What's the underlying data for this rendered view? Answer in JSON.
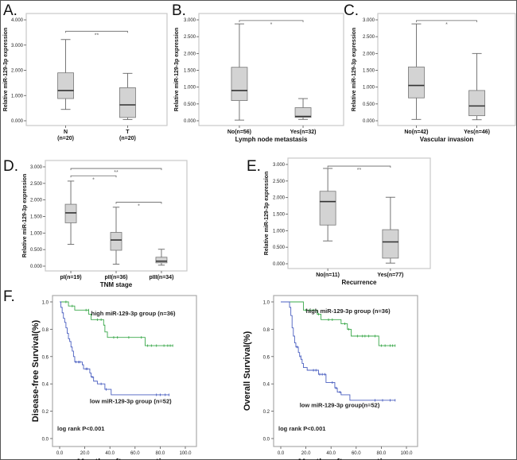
{
  "chart_data": [
    {
      "panel": "A.",
      "type": "box",
      "ylabel": "Relative miR-129-3p expression",
      "xlabel": "",
      "ylim": [
        0,
        4
      ],
      "yticks": [
        "0.000",
        "1.000",
        "2.000",
        "3.000",
        "4.000"
      ],
      "ytick_values": [
        0,
        1,
        2,
        3,
        4
      ],
      "categories": [
        {
          "name": "N",
          "sub": "(n=20)"
        },
        {
          "name": "T",
          "sub": "(n=20)"
        }
      ],
      "boxes": [
        {
          "min": 0.45,
          "q1": 0.88,
          "median": 1.2,
          "q3": 1.9,
          "max": 3.22
        },
        {
          "min": 0.05,
          "q1": 0.13,
          "median": 0.63,
          "q3": 1.31,
          "max": 1.88
        }
      ],
      "significance": [
        {
          "from": 0,
          "to": 1,
          "y": 3.55,
          "label": "**"
        }
      ]
    },
    {
      "panel": "B.",
      "type": "box",
      "ylabel": "Relative miR-129-3p expression",
      "xlabel": "Lymph node metastasis",
      "ylim": [
        0,
        3
      ],
      "yticks": [
        "0.000",
        "0.500",
        "1.000",
        "1.500",
        "2.000",
        "2.500",
        "3.000"
      ],
      "ytick_values": [
        0,
        0.5,
        1,
        1.5,
        2,
        2.5,
        3
      ],
      "categories": [
        {
          "name": "No(n=56)",
          "sub": ""
        },
        {
          "name": "Yes(n=32)",
          "sub": ""
        }
      ],
      "boxes": [
        {
          "min": 0.02,
          "q1": 0.6,
          "median": 0.9,
          "q3": 1.59,
          "max": 2.88
        },
        {
          "min": 0.04,
          "q1": 0.1,
          "median": 0.13,
          "q3": 0.39,
          "max": 0.66
        }
      ],
      "significance": [
        {
          "from": 0,
          "to": 1,
          "y": 2.98,
          "label": "*"
        }
      ]
    },
    {
      "panel": "C.",
      "type": "box",
      "ylabel": "Relative miR-129-3p expression",
      "xlabel": "Vascular invasion",
      "ylim": [
        0,
        3
      ],
      "yticks": [
        "0.000",
        "0.500",
        "1.000",
        "1.500",
        "2.000",
        "2.500",
        "3.000"
      ],
      "ytick_values": [
        0,
        0.5,
        1,
        1.5,
        2,
        2.5,
        3
      ],
      "categories": [
        {
          "name": "No(n=42)",
          "sub": ""
        },
        {
          "name": "Yes(n=46)",
          "sub": ""
        }
      ],
      "boxes": [
        {
          "min": 0.04,
          "q1": 0.68,
          "median": 1.05,
          "q3": 1.6,
          "max": 2.88
        },
        {
          "min": 0.03,
          "q1": 0.15,
          "median": 0.44,
          "q3": 0.9,
          "max": 2.0
        }
      ],
      "significance": [
        {
          "from": 0,
          "to": 1,
          "y": 2.98,
          "label": "*"
        }
      ]
    },
    {
      "panel": "D.",
      "type": "box",
      "ylabel": "Relative miR-129-3p expression",
      "xlabel": "TNM stage",
      "ylim": [
        0,
        3
      ],
      "yticks": [
        "0.000",
        "0.500",
        "1.000",
        "1.500",
        "2.000",
        "2.500",
        "3.000"
      ],
      "ytick_values": [
        0,
        0.5,
        1,
        1.5,
        2,
        2.5,
        3
      ],
      "categories": [
        {
          "name": "pI(n=19)",
          "sub": ""
        },
        {
          "name": "pII(n=36)",
          "sub": ""
        },
        {
          "name": "pIII(n=34)",
          "sub": ""
        }
      ],
      "boxes": [
        {
          "min": 0.66,
          "q1": 1.31,
          "median": 1.61,
          "q3": 1.87,
          "max": 2.57
        },
        {
          "min": 0.06,
          "q1": 0.48,
          "median": 0.79,
          "q3": 1.02,
          "max": 1.78
        },
        {
          "min": 0.03,
          "q1": 0.1,
          "median": 0.15,
          "q3": 0.27,
          "max": 0.51
        }
      ],
      "significance": [
        {
          "from": 0,
          "to": 2,
          "y": 2.95,
          "label": "**"
        },
        {
          "from": 0,
          "to": 1,
          "y": 2.73,
          "label": "*"
        },
        {
          "from": 1,
          "to": 2,
          "y": 1.93,
          "label": "*"
        }
      ]
    },
    {
      "panel": "E.",
      "type": "box",
      "ylabel": "Relative miR-129-3p expression",
      "xlabel": "Recurrence",
      "ylim": [
        0,
        3
      ],
      "yticks": [
        "0.000",
        "0.500",
        "1.000",
        "1.500",
        "2.000",
        "2.500",
        "3.000"
      ],
      "ytick_values": [
        0,
        0.5,
        1,
        1.5,
        2,
        2.5,
        3
      ],
      "categories": [
        {
          "name": "No(n=11)",
          "sub": ""
        },
        {
          "name": "Yes(n=77)",
          "sub": ""
        }
      ],
      "boxes": [
        {
          "min": 0.69,
          "q1": 1.17,
          "median": 1.88,
          "q3": 2.19,
          "max": 2.88
        },
        {
          "min": 0.02,
          "q1": 0.17,
          "median": 0.66,
          "q3": 1.03,
          "max": 2.01
        }
      ],
      "significance": [
        {
          "from": 0,
          "to": 1,
          "y": 2.95,
          "label": "**"
        }
      ]
    },
    {
      "panel": "F.",
      "type": "line",
      "subtype": "kaplan-meier",
      "ylabel": "Disease-free Survival(%)",
      "xlabel": "Months after operation",
      "xlim": [
        0,
        100
      ],
      "ylim": [
        0,
        1
      ],
      "xticks": [
        "0.0",
        "20.0",
        "40.0",
        "60.0",
        "80.0",
        "100.0"
      ],
      "xtick_values": [
        0,
        20,
        40,
        60,
        80,
        100
      ],
      "yticks": [
        "0.0",
        "0.2",
        "0.4",
        "0.6",
        "0.8",
        "1.0"
      ],
      "ytick_values": [
        0,
        0.2,
        0.4,
        0.6,
        0.8,
        1.0
      ],
      "annotation": "log rank P<0.001",
      "series": [
        {
          "name": "high miR-129-3p group (n=36)",
          "color": "#3aa84a",
          "steps": [
            [
              0,
              1.0
            ],
            [
              7,
              0.97
            ],
            [
              12,
              0.94
            ],
            [
              23,
              0.91
            ],
            [
              25,
              0.87
            ],
            [
              35,
              0.83
            ],
            [
              36,
              0.78
            ],
            [
              38,
              0.74
            ],
            [
              68,
              0.68
            ],
            [
              90,
              0.68
            ]
          ],
          "censored": [
            [
              5,
              1.0
            ],
            [
              10,
              0.97
            ],
            [
              21,
              0.94
            ],
            [
              23,
              0.94
            ],
            [
              30,
              0.87
            ],
            [
              33,
              0.87
            ],
            [
              43,
              0.74
            ],
            [
              46,
              0.74
            ],
            [
              55,
              0.74
            ],
            [
              65,
              0.74
            ],
            [
              70,
              0.68
            ],
            [
              73,
              0.68
            ],
            [
              77,
              0.68
            ],
            [
              83,
              0.68
            ],
            [
              86,
              0.68
            ],
            [
              88,
              0.68
            ],
            [
              90,
              0.68
            ]
          ]
        },
        {
          "name": "low miR-129-3p group (n=52)",
          "color": "#4a5fc0",
          "steps": [
            [
              0,
              1.0
            ],
            [
              1,
              0.96
            ],
            [
              2,
              0.92
            ],
            [
              3,
              0.88
            ],
            [
              4,
              0.85
            ],
            [
              5,
              0.81
            ],
            [
              6,
              0.77
            ],
            [
              7,
              0.73
            ],
            [
              8,
              0.71
            ],
            [
              9,
              0.67
            ],
            [
              10,
              0.64
            ],
            [
              11,
              0.6
            ],
            [
              12,
              0.56
            ],
            [
              18,
              0.54
            ],
            [
              19,
              0.51
            ],
            [
              24,
              0.48
            ],
            [
              25,
              0.45
            ],
            [
              27,
              0.42
            ],
            [
              30,
              0.4
            ],
            [
              36,
              0.36
            ],
            [
              41,
              0.32
            ],
            [
              87,
              0.32
            ]
          ],
          "censored": [
            [
              13,
              0.56
            ],
            [
              15,
              0.56
            ],
            [
              16,
              0.56
            ],
            [
              21,
              0.51
            ],
            [
              22,
              0.51
            ],
            [
              26,
              0.45
            ],
            [
              33,
              0.4
            ],
            [
              37,
              0.36
            ],
            [
              77,
              0.32
            ],
            [
              80,
              0.32
            ],
            [
              84,
              0.32
            ],
            [
              87,
              0.32
            ]
          ]
        }
      ]
    },
    {
      "panel": "",
      "type": "line",
      "subtype": "kaplan-meier",
      "ylabel": "Overall Survival(%)",
      "xlabel": "Months after operation",
      "xlim": [
        0,
        100
      ],
      "ylim": [
        0,
        1
      ],
      "xticks": [
        "0.0",
        "20.0",
        "40.0",
        "60.0",
        "80.0",
        "100.0"
      ],
      "xtick_values": [
        0,
        20,
        40,
        60,
        80,
        100
      ],
      "yticks": [
        "0.0",
        "0.2",
        "0.4",
        "0.6",
        "0.8",
        "1.0"
      ],
      "ytick_values": [
        0,
        0.2,
        0.4,
        0.6,
        0.8,
        1.0
      ],
      "annotation": "log rank P<0.001",
      "series": [
        {
          "name": "high miR-129-3p group (n=36)",
          "color": "#3aa84a",
          "steps": [
            [
              0,
              1.0
            ],
            [
              18,
              0.94
            ],
            [
              29,
              0.91
            ],
            [
              32,
              0.87
            ],
            [
              48,
              0.84
            ],
            [
              53,
              0.8
            ],
            [
              56,
              0.75
            ],
            [
              78,
              0.68
            ],
            [
              91,
              0.68
            ]
          ],
          "censored": [
            [
              20,
              0.94
            ],
            [
              23,
              0.94
            ],
            [
              26,
              0.94
            ],
            [
              30,
              0.91
            ],
            [
              38,
              0.87
            ],
            [
              41,
              0.87
            ],
            [
              51,
              0.84
            ],
            [
              54,
              0.8
            ],
            [
              61,
              0.75
            ],
            [
              65,
              0.75
            ],
            [
              67,
              0.75
            ],
            [
              70,
              0.75
            ],
            [
              75,
              0.75
            ],
            [
              80,
              0.68
            ],
            [
              83,
              0.68
            ],
            [
              87,
              0.68
            ],
            [
              89,
              0.68
            ],
            [
              91,
              0.68
            ]
          ]
        },
        {
          "name": "low miR-129-3p group(n=52)",
          "color": "#4a5fc0",
          "steps": [
            [
              0,
              1.0
            ],
            [
              7,
              0.96
            ],
            [
              8,
              0.9
            ],
            [
              9,
              0.81
            ],
            [
              10,
              0.75
            ],
            [
              11,
              0.7
            ],
            [
              12,
              0.67
            ],
            [
              14,
              0.63
            ],
            [
              15,
              0.6
            ],
            [
              16,
              0.58
            ],
            [
              17,
              0.55
            ],
            [
              18,
              0.52
            ],
            [
              21,
              0.5
            ],
            [
              30,
              0.47
            ],
            [
              36,
              0.41
            ],
            [
              43,
              0.37
            ],
            [
              45,
              0.34
            ],
            [
              48,
              0.32
            ],
            [
              55,
              0.28
            ],
            [
              91,
              0.28
            ]
          ],
          "censored": [
            [
              13,
              0.67
            ],
            [
              16,
              0.6
            ],
            [
              26,
              0.5
            ],
            [
              28,
              0.5
            ],
            [
              31,
              0.47
            ],
            [
              33,
              0.47
            ],
            [
              35,
              0.47
            ],
            [
              41,
              0.41
            ],
            [
              44,
              0.37
            ],
            [
              47,
              0.34
            ],
            [
              75,
              0.28
            ],
            [
              81,
              0.28
            ],
            [
              87,
              0.28
            ],
            [
              91,
              0.28
            ]
          ]
        }
      ]
    }
  ]
}
